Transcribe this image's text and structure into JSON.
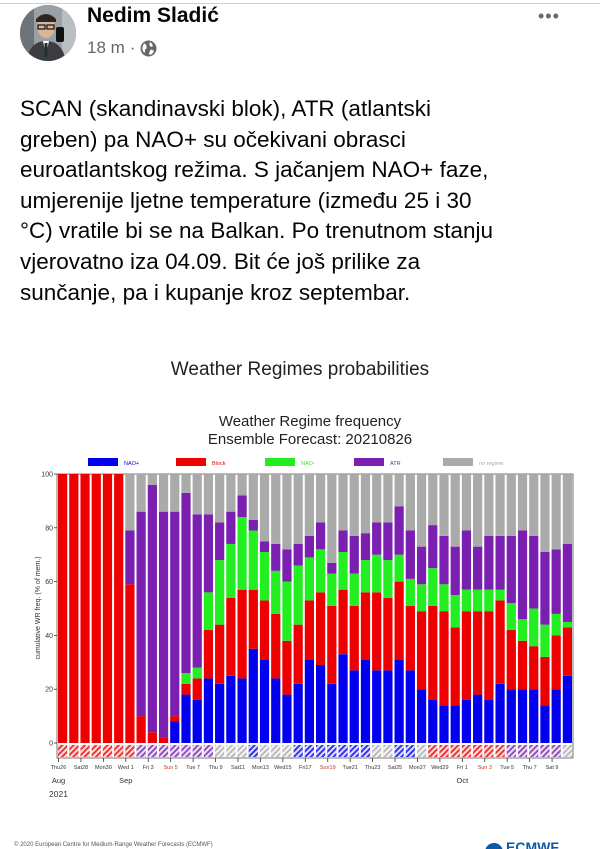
{
  "post": {
    "author": "Nedim Sladić",
    "time": "18 m",
    "separator": "·",
    "privacy_icon": "globe-icon",
    "more_label": "•••",
    "text_lines": [
      "SCAN (skandinavski blok), ATR (atlantski",
      "greben) pa NAO+ su očekivani obrasci",
      "euroatlantskog režima. S jačanjem NAO+ faze,",
      "umjerenije ljetne temperature (između 25 i 30",
      "°C) vratile bi se na Balkan. Po trenutnom stanju",
      "vjerovatno iza 04.09. Bit će još prilike za",
      "sunčanje, pa i kupanje kroz septembar."
    ]
  },
  "image": {
    "heading": "Weather Regimes probabilities",
    "footer": "© 2020 European Centre for Medium-Range Weather Forecasts (ECMWF)",
    "logo_text": "ECMWF"
  },
  "chart_data": {
    "type": "bar",
    "stacked": true,
    "title": "Weather Regime frequency",
    "subtitle": "Ensemble Forecast: 20210826",
    "ylabel": "cumulative WR freq. (% of mem.)",
    "ylim": [
      0,
      100
    ],
    "yticks": [
      0,
      20,
      40,
      60,
      80,
      100
    ],
    "legend_position": "top",
    "x_tick_labels": [
      "Thu26",
      "Sat28",
      "Mon30",
      "Wed 1",
      "Fri 3",
      "Sun 5",
      "Tue 7",
      "Thu 9",
      "Sat11",
      "Mon13",
      "Wed15",
      "Fri17",
      "Sun19",
      "Tue21",
      "Thu23",
      "Sat25",
      "Mon27",
      "Wed29",
      "Fri 1",
      "Sun 3",
      "Tue 5",
      "Thu 7",
      "Sat 9"
    ],
    "sunday_color": "#c0392b",
    "month_labels": [
      {
        "label": "Aug",
        "tick": 0
      },
      {
        "label": "Sep",
        "tick": 3
      },
      {
        "label": "Oct",
        "tick": 18
      }
    ],
    "year_label": "2021",
    "series": [
      {
        "name": "NAO+",
        "color": "#0000ee",
        "values": [
          0,
          0,
          0,
          0,
          0,
          0,
          0,
          0,
          0,
          0,
          8,
          18,
          16,
          24,
          22,
          25,
          24,
          35,
          31,
          24,
          18,
          22,
          31,
          29,
          22,
          33,
          27,
          31,
          27,
          27,
          31,
          27,
          20,
          16,
          14,
          14,
          16,
          18,
          16,
          22,
          20,
          20,
          20,
          14,
          20,
          25
        ]
      },
      {
        "name": "Block",
        "color": "#ee0000",
        "values": [
          100,
          100,
          100,
          100,
          100,
          100,
          59,
          10,
          4,
          2,
          2,
          4,
          8,
          18,
          22,
          29,
          33,
          22,
          22,
          24,
          20,
          22,
          22,
          27,
          29,
          24,
          24,
          25,
          29,
          27,
          29,
          24,
          29,
          35,
          35,
          29,
          33,
          31,
          33,
          31,
          22,
          18,
          16,
          18,
          20,
          18
        ]
      },
      {
        "name": "NAO-",
        "color": "#22ee22",
        "values": [
          0,
          0,
          0,
          0,
          0,
          0,
          0,
          0,
          0,
          0,
          0,
          4,
          4,
          14,
          24,
          20,
          27,
          22,
          18,
          16,
          22,
          22,
          16,
          16,
          12,
          14,
          12,
          12,
          14,
          14,
          10,
          10,
          10,
          14,
          10,
          12,
          8,
          8,
          8,
          4,
          10,
          8,
          14,
          12,
          8,
          2
        ]
      },
      {
        "name": "ATR",
        "color": "#7a1fb0",
        "values": [
          0,
          0,
          0,
          0,
          0,
          0,
          20,
          76,
          92,
          84,
          76,
          67,
          57,
          29,
          14,
          12,
          8,
          4,
          4,
          10,
          12,
          8,
          8,
          10,
          4,
          8,
          14,
          10,
          12,
          14,
          18,
          18,
          14,
          16,
          18,
          18,
          22,
          16,
          20,
          20,
          25,
          33,
          27,
          27,
          24,
          29
        ]
      },
      {
        "name": "no regime",
        "color": "#aaaaaa",
        "values": [
          0,
          0,
          0,
          0,
          0,
          0,
          21,
          14,
          4,
          14,
          14,
          7,
          15,
          15,
          18,
          14,
          8,
          17,
          25,
          26,
          28,
          26,
          23,
          18,
          33,
          21,
          23,
          22,
          18,
          18,
          12,
          21,
          27,
          19,
          23,
          27,
          21,
          27,
          23,
          23,
          23,
          21,
          23,
          29,
          28,
          26
        ]
      }
    ],
    "dominant_regime": [
      "Block",
      "Block",
      "Block",
      "Block",
      "Block",
      "Block",
      "Block",
      "ATR",
      "ATR",
      "ATR",
      "ATR",
      "ATR",
      "ATR",
      "ATR",
      "no regime",
      "no regime",
      "no regime",
      "NAO+",
      "no regime",
      "no regime",
      "no regime",
      "NAO+",
      "NAO+",
      "NAO+",
      "NAO+",
      "NAO+",
      "NAO+",
      "NAO+",
      "no regime",
      "no regime",
      "NAO+",
      "NAO+",
      "no regime",
      "Block",
      "Block",
      "Block",
      "Block",
      "Block",
      "Block",
      "Block",
      "ATR",
      "ATR",
      "ATR",
      "ATR",
      "ATR",
      "no regime"
    ]
  }
}
